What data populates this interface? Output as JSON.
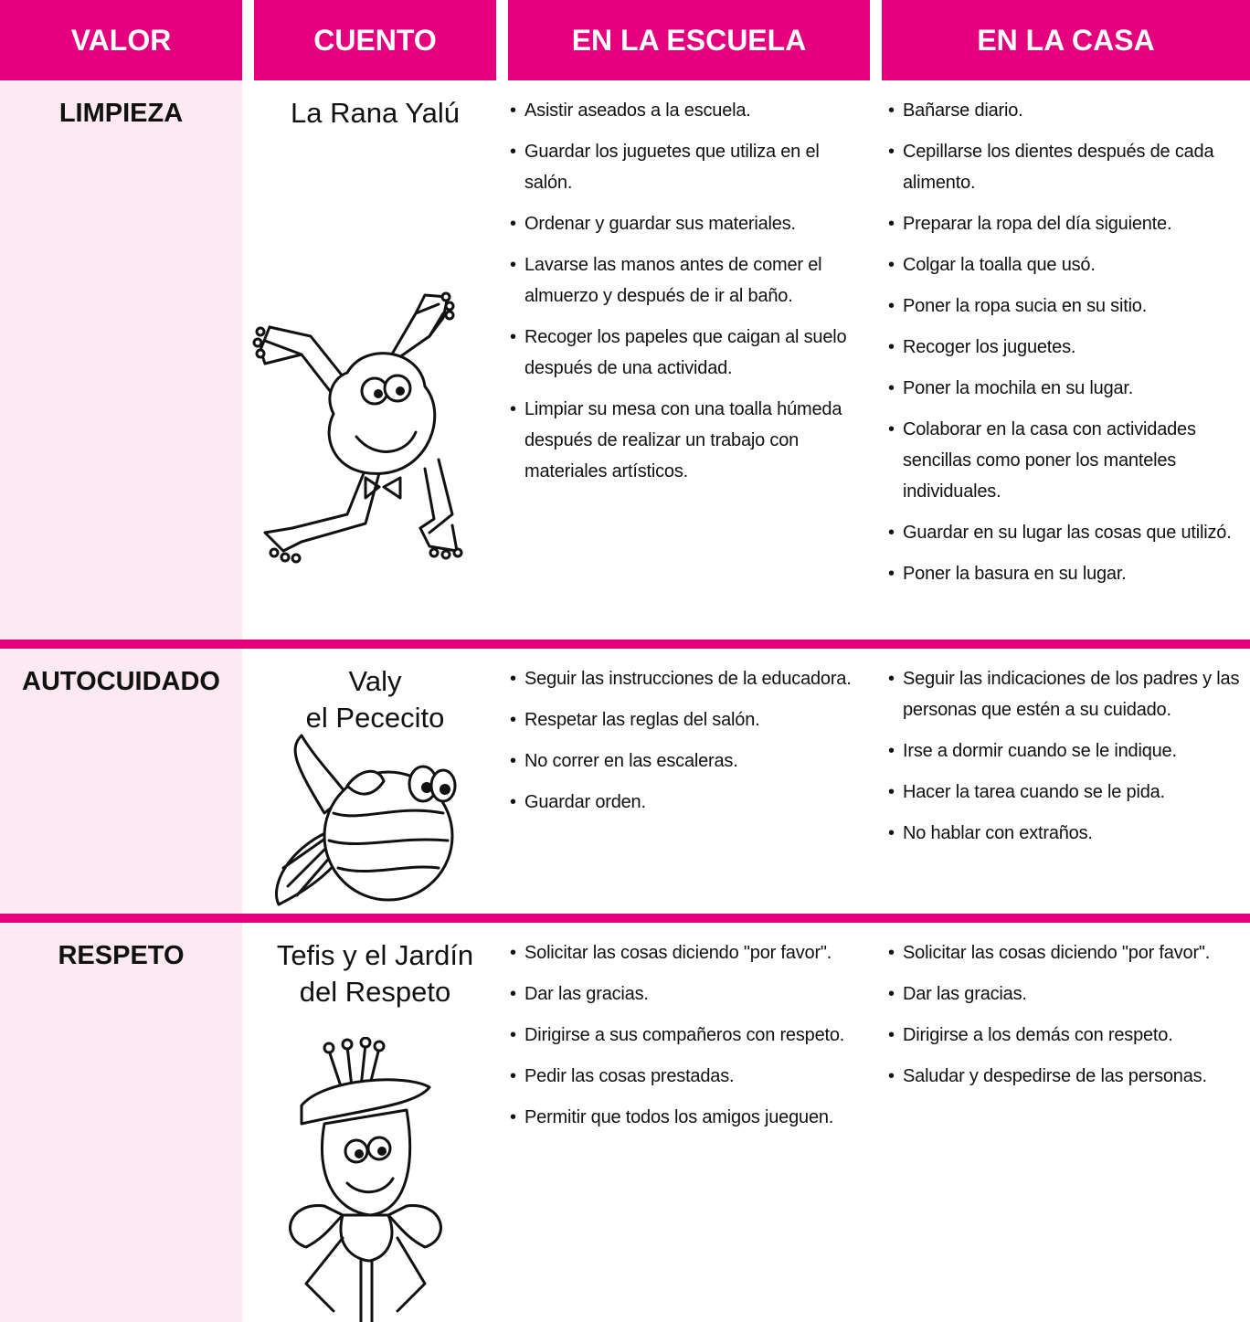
{
  "header": {
    "columns": [
      "VALOR",
      "CUENTO",
      "EN LA ESCUELA",
      "EN LA CASA"
    ]
  },
  "rows": [
    {
      "valor": "LIMPIEZA",
      "cuento": "La Rana Yalú",
      "escuela": [
        "Asistir aseados a la escuela.",
        "Guardar los juguetes que utiliza en el salón.",
        "Ordenar y guardar sus materiales.",
        "Lavarse las manos antes de comer el almuerzo y después de ir al baño.",
        "Recoger los papeles que caigan al suelo después de una actividad.",
        "Limpiar su mesa con una toalla húmeda después de realizar un trabajo con materiales artísticos."
      ],
      "casa": [
        "Bañarse diario.",
        "Cepillarse los dientes después de cada alimento.",
        "Preparar la ropa del día siguiente.",
        "Colgar la toalla que usó.",
        "Poner la ropa sucia en su sitio.",
        "Recoger los juguetes.",
        "Poner la mochila en su lugar.",
        "Colaborar en la casa con actividades sencillas como poner los manteles individuales.",
        "Guardar en su lugar las cosas que utilizó.",
        "Poner la basura en su lugar."
      ]
    },
    {
      "valor": "AUTOCUIDADO",
      "cuento": "Valy\nel Pececito",
      "escuela": [
        "Seguir las instrucciones de la educadora.",
        "Respetar las reglas del salón.",
        "No correr en las escaleras.",
        "Guardar orden."
      ],
      "casa": [
        "Seguir las indicaciones de los padres y las personas que estén a su cuidado.",
        "Irse a dormir cuando se le indique.",
        "Hacer la tarea cuando se le pida.",
        "No hablar con extraños."
      ]
    },
    {
      "valor": "RESPETO",
      "cuento": "Tefis y el Jardín\ndel Respeto",
      "escuela": [
        "Solicitar las cosas diciendo \"por favor\".",
        "Dar las gracias.",
        "Dirigirse a sus compañeros con respeto.",
        "Pedir las cosas prestadas.",
        "Permitir que todos los amigos jueguen."
      ],
      "casa": [
        "Solicitar las cosas diciendo \"por favor\".",
        "Dar las gracias.",
        "Dirigirse a los demás con respeto.",
        "Saludar y despedirse de las personas."
      ]
    }
  ]
}
